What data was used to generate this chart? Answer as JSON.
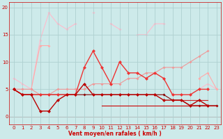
{
  "x": [
    0,
    1,
    2,
    3,
    4,
    5,
    6,
    7,
    8,
    9,
    10,
    11,
    12,
    13,
    14,
    15,
    16,
    17,
    18,
    19,
    20,
    21,
    22,
    23
  ],
  "line_lightest_pink": [
    7,
    6,
    5,
    14,
    19,
    17,
    16,
    17,
    null,
    19,
    null,
    17,
    16,
    null,
    15,
    15,
    17,
    17,
    null,
    null,
    null,
    5,
    6,
    5
  ],
  "line_light_pink": [
    5,
    5,
    5,
    13,
    13,
    null,
    null,
    null,
    null,
    null,
    null,
    null,
    null,
    null,
    null,
    null,
    null,
    null,
    null,
    null,
    null,
    7,
    8,
    5
  ],
  "line_salmon": [
    5,
    5,
    5,
    4,
    4,
    5,
    5,
    5,
    5,
    6,
    6,
    6,
    6,
    7,
    7,
    8,
    8,
    9,
    9,
    9,
    10,
    11,
    12,
    null
  ],
  "line_med_red": [
    5,
    4,
    4,
    4,
    4,
    4,
    4,
    4,
    9,
    12,
    9,
    6,
    10,
    8,
    8,
    7,
    8,
    7,
    4,
    4,
    4,
    5,
    5,
    null
  ],
  "line_dark_red": [
    5,
    4,
    4,
    1,
    1,
    3,
    4,
    4,
    6,
    4,
    4,
    4,
    4,
    4,
    4,
    4,
    4,
    3,
    3,
    3,
    2,
    3,
    2,
    null
  ],
  "line_darkest1": [
    5,
    4,
    4,
    4,
    4,
    4,
    4,
    4,
    4,
    4,
    4,
    4,
    4,
    4,
    4,
    4,
    4,
    4,
    3,
    3,
    2,
    2,
    2,
    2
  ],
  "line_darkest2": [
    null,
    null,
    null,
    null,
    null,
    null,
    null,
    null,
    null,
    null,
    2,
    2,
    2,
    2,
    2,
    2,
    2,
    2,
    2,
    2,
    2,
    2,
    2,
    2
  ],
  "line_darkest3": [
    null,
    null,
    null,
    null,
    null,
    null,
    null,
    null,
    null,
    null,
    null,
    null,
    null,
    null,
    null,
    null,
    null,
    null,
    3,
    3,
    3,
    3,
    3,
    null
  ],
  "bg_color": "#cdeaea",
  "grid_color": "#aed0d0",
  "xlabel": "Vent moyen/en rafales ( km/h )",
  "yticks": [
    0,
    5,
    10,
    15,
    20
  ],
  "xlim": [
    -0.5,
    23.5
  ],
  "ylim": [
    -1.5,
    21
  ],
  "red": "#cc0000"
}
